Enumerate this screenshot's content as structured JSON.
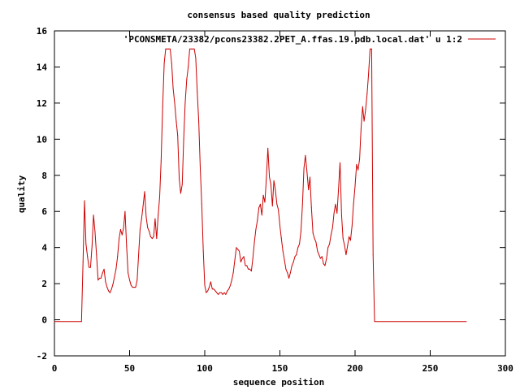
{
  "chart_data": {
    "type": "line",
    "title": "consensus based quality prediction",
    "xlabel": "sequence position",
    "ylabel": "quality",
    "xlim": [
      0,
      300
    ],
    "ylim": [
      -2,
      16
    ],
    "xticks": [
      0,
      50,
      100,
      150,
      200,
      250,
      300
    ],
    "yticks": [
      -2,
      0,
      2,
      4,
      6,
      8,
      10,
      12,
      14,
      16
    ],
    "grid": false,
    "legend_position": "top-right",
    "series": [
      {
        "name": "'PCONSMETA/23382/pcons23382.2PET_A.ffas.19.pdb.local.dat' u 1:2",
        "color": "#cc0000",
        "points": [
          [
            0,
            -0.1
          ],
          [
            18,
            -0.1
          ],
          [
            19,
            3.2
          ],
          [
            20,
            6.6
          ],
          [
            21,
            4.2
          ],
          [
            22,
            3.5
          ],
          [
            23,
            2.9
          ],
          [
            24,
            2.9
          ],
          [
            25,
            4.1
          ],
          [
            26,
            5.8
          ],
          [
            27,
            4.9
          ],
          [
            28,
            3.6
          ],
          [
            29,
            2.2
          ],
          [
            30,
            2.3
          ],
          [
            31,
            2.3
          ],
          [
            32,
            2.6
          ],
          [
            33,
            2.8
          ],
          [
            34,
            2.1
          ],
          [
            35,
            1.8
          ],
          [
            36,
            1.6
          ],
          [
            37,
            1.5
          ],
          [
            38,
            1.7
          ],
          [
            39,
            2.0
          ],
          [
            40,
            2.4
          ],
          [
            41,
            2.8
          ],
          [
            42,
            3.5
          ],
          [
            43,
            4.5
          ],
          [
            44,
            5.0
          ],
          [
            45,
            4.7
          ],
          [
            46,
            5.1
          ],
          [
            47,
            6.0
          ],
          [
            48,
            4.1
          ],
          [
            49,
            2.6
          ],
          [
            50,
            2.2
          ],
          [
            51,
            1.9
          ],
          [
            52,
            1.8
          ],
          [
            53,
            1.8
          ],
          [
            54,
            1.8
          ],
          [
            55,
            2.2
          ],
          [
            56,
            3.6
          ],
          [
            57,
            5.0
          ],
          [
            58,
            5.6
          ],
          [
            59,
            6.3
          ],
          [
            60,
            7.1
          ],
          [
            61,
            5.7
          ],
          [
            62,
            5.1
          ],
          [
            63,
            4.9
          ],
          [
            64,
            4.6
          ],
          [
            65,
            4.5
          ],
          [
            66,
            4.6
          ],
          [
            67,
            5.6
          ],
          [
            68,
            4.5
          ],
          [
            69,
            5.8
          ],
          [
            70,
            6.8
          ],
          [
            71,
            8.8
          ],
          [
            72,
            11.8
          ],
          [
            73,
            14.2
          ],
          [
            74,
            15.0
          ],
          [
            75,
            15.0
          ],
          [
            76,
            15.0
          ],
          [
            77,
            15.0
          ],
          [
            78,
            14.2
          ],
          [
            79,
            12.8
          ],
          [
            80,
            12.0
          ],
          [
            81,
            11.0
          ],
          [
            82,
            10.2
          ],
          [
            83,
            7.8
          ],
          [
            84,
            7.0
          ],
          [
            85,
            7.5
          ],
          [
            86,
            10.0
          ],
          [
            87,
            12.0
          ],
          [
            88,
            13.3
          ],
          [
            89,
            14.0
          ],
          [
            90,
            15.0
          ],
          [
            91,
            15.0
          ],
          [
            92,
            15.0
          ],
          [
            93,
            15.0
          ],
          [
            94,
            14.5
          ],
          [
            95,
            12.6
          ],
          [
            96,
            11.0
          ],
          [
            97,
            8.5
          ],
          [
            98,
            6.4
          ],
          [
            99,
            3.8
          ],
          [
            100,
            1.9
          ],
          [
            101,
            1.5
          ],
          [
            102,
            1.6
          ],
          [
            103,
            1.8
          ],
          [
            104,
            2.1
          ],
          [
            105,
            1.7
          ],
          [
            106,
            1.7
          ],
          [
            107,
            1.6
          ],
          [
            108,
            1.5
          ],
          [
            109,
            1.4
          ],
          [
            110,
            1.5
          ],
          [
            111,
            1.5
          ],
          [
            112,
            1.4
          ],
          [
            113,
            1.5
          ],
          [
            114,
            1.4
          ],
          [
            115,
            1.6
          ],
          [
            116,
            1.7
          ],
          [
            117,
            1.9
          ],
          [
            118,
            2.2
          ],
          [
            119,
            2.6
          ],
          [
            120,
            3.3
          ],
          [
            121,
            4.0
          ],
          [
            122,
            3.9
          ],
          [
            123,
            3.8
          ],
          [
            124,
            3.2
          ],
          [
            125,
            3.4
          ],
          [
            126,
            3.5
          ],
          [
            127,
            3.0
          ],
          [
            128,
            3.0
          ],
          [
            129,
            2.8
          ],
          [
            130,
            2.8
          ],
          [
            131,
            2.7
          ],
          [
            132,
            3.4
          ],
          [
            133,
            4.3
          ],
          [
            134,
            5.0
          ],
          [
            135,
            5.5
          ],
          [
            136,
            6.2
          ],
          [
            137,
            6.4
          ],
          [
            138,
            5.8
          ],
          [
            139,
            6.9
          ],
          [
            140,
            6.5
          ],
          [
            141,
            7.8
          ],
          [
            142,
            9.5
          ],
          [
            143,
            7.9
          ],
          [
            144,
            7.5
          ],
          [
            145,
            6.3
          ],
          [
            146,
            7.7
          ],
          [
            147,
            7.2
          ],
          [
            148,
            6.4
          ],
          [
            149,
            6.1
          ],
          [
            150,
            5.2
          ],
          [
            151,
            4.5
          ],
          [
            152,
            3.8
          ],
          [
            153,
            3.3
          ],
          [
            154,
            2.8
          ],
          [
            155,
            2.6
          ],
          [
            156,
            2.3
          ],
          [
            157,
            2.6
          ],
          [
            158,
            3.0
          ],
          [
            159,
            3.2
          ],
          [
            160,
            3.5
          ],
          [
            161,
            3.6
          ],
          [
            162,
            4.0
          ],
          [
            163,
            4.2
          ],
          [
            164,
            4.9
          ],
          [
            165,
            6.4
          ],
          [
            166,
            8.4
          ],
          [
            167,
            9.1
          ],
          [
            168,
            8.2
          ],
          [
            169,
            7.2
          ],
          [
            170,
            7.9
          ],
          [
            171,
            6.2
          ],
          [
            172,
            4.8
          ],
          [
            173,
            4.5
          ],
          [
            174,
            4.3
          ],
          [
            175,
            3.8
          ],
          [
            176,
            3.6
          ],
          [
            177,
            3.4
          ],
          [
            178,
            3.5
          ],
          [
            179,
            3.1
          ],
          [
            180,
            3.0
          ],
          [
            181,
            3.4
          ],
          [
            182,
            4.0
          ],
          [
            183,
            4.2
          ],
          [
            184,
            4.7
          ],
          [
            185,
            5.1
          ],
          [
            186,
            5.9
          ],
          [
            187,
            6.4
          ],
          [
            188,
            5.9
          ],
          [
            189,
            7.2
          ],
          [
            190,
            8.7
          ],
          [
            191,
            5.8
          ],
          [
            192,
            4.5
          ],
          [
            193,
            4.1
          ],
          [
            194,
            3.6
          ],
          [
            195,
            4.1
          ],
          [
            196,
            4.6
          ],
          [
            197,
            4.4
          ],
          [
            198,
            5.2
          ],
          [
            199,
            6.4
          ],
          [
            200,
            7.4
          ],
          [
            201,
            8.6
          ],
          [
            202,
            8.3
          ],
          [
            203,
            8.9
          ],
          [
            204,
            10.6
          ],
          [
            205,
            11.8
          ],
          [
            206,
            11.0
          ],
          [
            207,
            11.6
          ],
          [
            208,
            12.5
          ],
          [
            209,
            13.6
          ],
          [
            210,
            15.0
          ],
          [
            211,
            15.0
          ],
          [
            212,
            3.6
          ],
          [
            213,
            -0.1
          ],
          [
            274,
            -0.1
          ]
        ]
      }
    ]
  }
}
